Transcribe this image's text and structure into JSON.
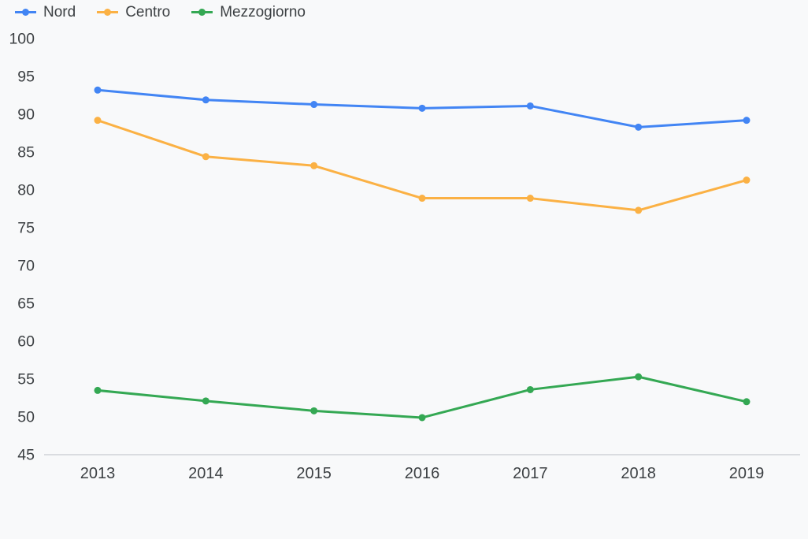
{
  "chart_data": {
    "type": "line",
    "title": "",
    "xlabel": "",
    "ylabel": "",
    "x": [
      2013,
      2014,
      2015,
      2016,
      2017,
      2018,
      2019
    ],
    "x_tick_labels": [
      "2013",
      "2014",
      "2015",
      "2016",
      "2017",
      "2018",
      "2019"
    ],
    "y_ticks": [
      45,
      50,
      55,
      60,
      65,
      70,
      75,
      80,
      85,
      90,
      95,
      100
    ],
    "ylim": [
      45,
      100
    ],
    "grid": false,
    "legend_position": "top-left",
    "series": [
      {
        "name": "Nord",
        "color": "#4285f4",
        "values": [
          93.2,
          91.9,
          91.3,
          90.8,
          91.1,
          88.3,
          89.2
        ]
      },
      {
        "name": "Centro",
        "color": "#fbb144",
        "values": [
          89.2,
          84.4,
          83.2,
          78.9,
          78.9,
          77.3,
          81.3
        ]
      },
      {
        "name": "Mezzogiorno",
        "color": "#34a853",
        "values": [
          53.5,
          52.1,
          50.8,
          49.9,
          53.6,
          55.3,
          52.0
        ]
      }
    ],
    "colors": {
      "background": "#f8f9fa",
      "axis_line": "#dadce0",
      "tick_label": "#3c4043"
    }
  }
}
